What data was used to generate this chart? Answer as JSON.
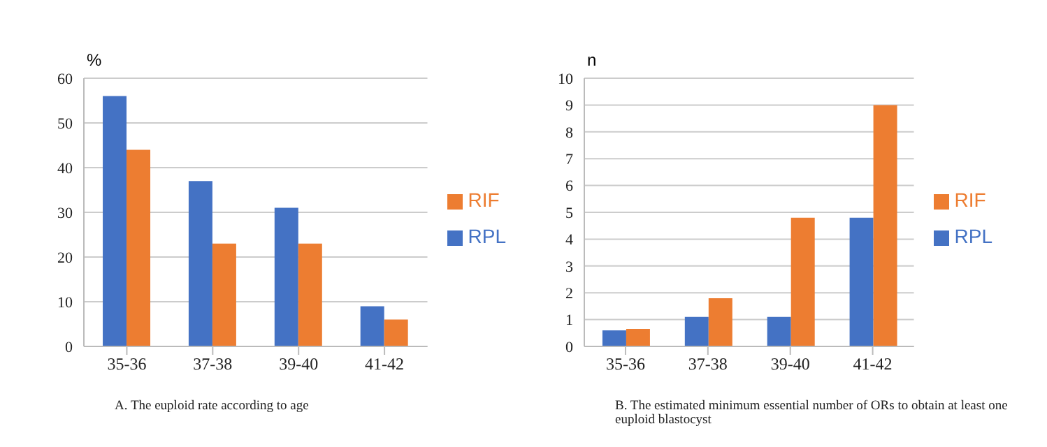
{
  "chart_data": [
    {
      "type": "bar",
      "ylabel": "%",
      "categories": [
        "35-36",
        "37-38",
        "39-40",
        "41-42"
      ],
      "series": [
        {
          "name": "RPL",
          "color": "#4472c4",
          "values": [
            56,
            37,
            31,
            9
          ]
        },
        {
          "name": "RIF",
          "color": "#ed7d31",
          "values": [
            44,
            23,
            23,
            6
          ]
        }
      ],
      "ylim": [
        0,
        60
      ],
      "yticks": [
        0,
        10,
        20,
        30,
        40,
        50,
        60
      ],
      "grid": "y",
      "legend": "right",
      "annotations": [
        "A. The euploid rate according to age"
      ]
    },
    {
      "type": "bar",
      "ylabel": "n",
      "categories": [
        "35-36",
        "37-38",
        "39-40",
        "41-42"
      ],
      "series": [
        {
          "name": "RPL",
          "color": "#4472c4",
          "values": [
            0.6,
            1.1,
            1.1,
            4.8
          ]
        },
        {
          "name": "RIF",
          "color": "#ed7d31",
          "values": [
            0.65,
            1.8,
            4.8,
            9
          ]
        }
      ],
      "ylim": [
        0,
        10
      ],
      "yticks": [
        0,
        1,
        2,
        3,
        4,
        5,
        6,
        7,
        8,
        9,
        10
      ],
      "grid": "y",
      "legend": "right",
      "annotations": [
        "B. The estimated minimum essential number of ORs to obtain at least one euploid blastocyst"
      ]
    }
  ]
}
